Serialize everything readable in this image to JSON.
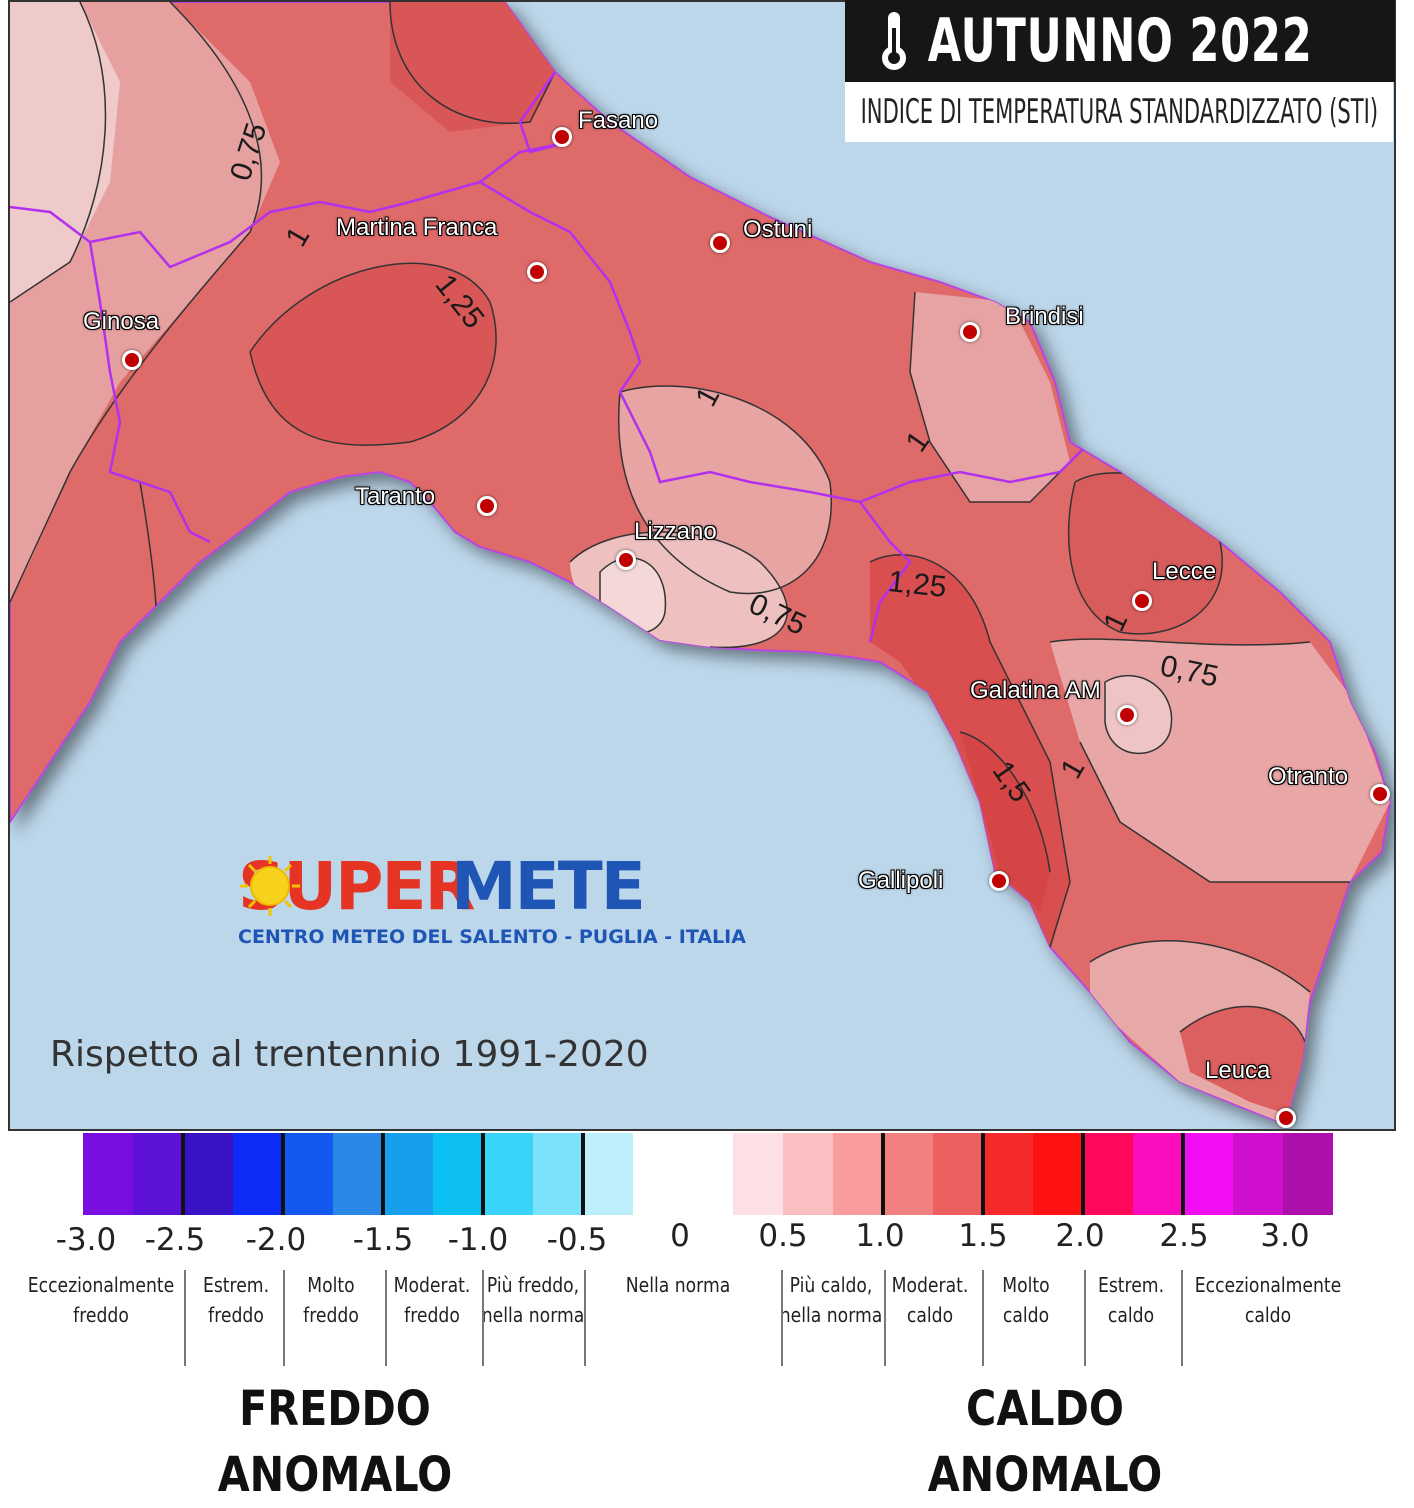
{
  "header": {
    "title": "AUTUNNO 2022",
    "subtitle": "INDICE DI TEMPERATURA STANDARDIZZATO (STI)",
    "icon": "thermometer-icon"
  },
  "map": {
    "cities": [
      {
        "name": "Fasano"
      },
      {
        "name": "Martina Franca"
      },
      {
        "name": "Ostuni"
      },
      {
        "name": "Ginosa"
      },
      {
        "name": "Brindisi"
      },
      {
        "name": "Taranto"
      },
      {
        "name": "Lizzano"
      },
      {
        "name": "Lecce"
      },
      {
        "name": "Galatina AM"
      },
      {
        "name": "Otranto"
      },
      {
        "name": "Gallipoli"
      },
      {
        "name": "Leuca"
      }
    ],
    "contour_labels": [
      "0,75",
      "1",
      "1,25",
      "1",
      "1",
      "0,75",
      "1,25",
      "1",
      "0,75",
      "1,5",
      "1"
    ],
    "colors": {
      "sea": "#bcd6ea",
      "land_warm": "#dd6464",
      "land_moderate": "#e58a8a",
      "land_mild": "#ecb4b4",
      "borders": "#a838e0",
      "city_dot": "#c00000"
    }
  },
  "logo": {
    "brand_part1": "SUPER",
    "brand_part2": "METE",
    "tagline": "CENTRO METEO DEL SALENTO - PUGLIA - ITALIA",
    "icon": "sun-icon"
  },
  "reference_note": "Rispetto al trentennio 1991-2020",
  "legend": {
    "ticks": [
      "-3.0",
      "-2.5",
      "-2.0",
      "-1.5",
      "-1.0",
      "-0.5",
      "0",
      "0.5",
      "1.0",
      "1.5",
      "2.0",
      "2.5",
      "3.0"
    ],
    "colors": [
      "#7a0ee0",
      "#5d10d6",
      "#3a12c6",
      "#0d2cf8",
      "#1459ef",
      "#2a88e8",
      "#179fee",
      "#0cbff2",
      "#3ad4fb",
      "#7ae2fb",
      "#bdeefc",
      "#ffffff",
      "#ffffff",
      "#fde0e5",
      "#fbbfc2",
      "#f89c9e",
      "#f38080",
      "#ee5f60",
      "#f52b2b",
      "#ff1212",
      "#ff0a5a",
      "#fb0cbd",
      "#f20ef2",
      "#cf0fce",
      "#ad0fad"
    ],
    "categories": [
      "Eccezionalmente\nfreddo",
      "Estrem.\nfreddo",
      "Molto\nfreddo",
      "Moderat.\nfreddo",
      "Più freddo,\nnella norma",
      "Nella norma",
      "Più caldo,\nnella norma",
      "Moderat.\ncaldo",
      "Molto\ncaldo",
      "Estrem.\ncaldo",
      "Eccezionalmente\ncaldo"
    ],
    "cold_label": "FREDDO\nANOMALO",
    "warm_label": "CALDO\nANOMALO"
  }
}
